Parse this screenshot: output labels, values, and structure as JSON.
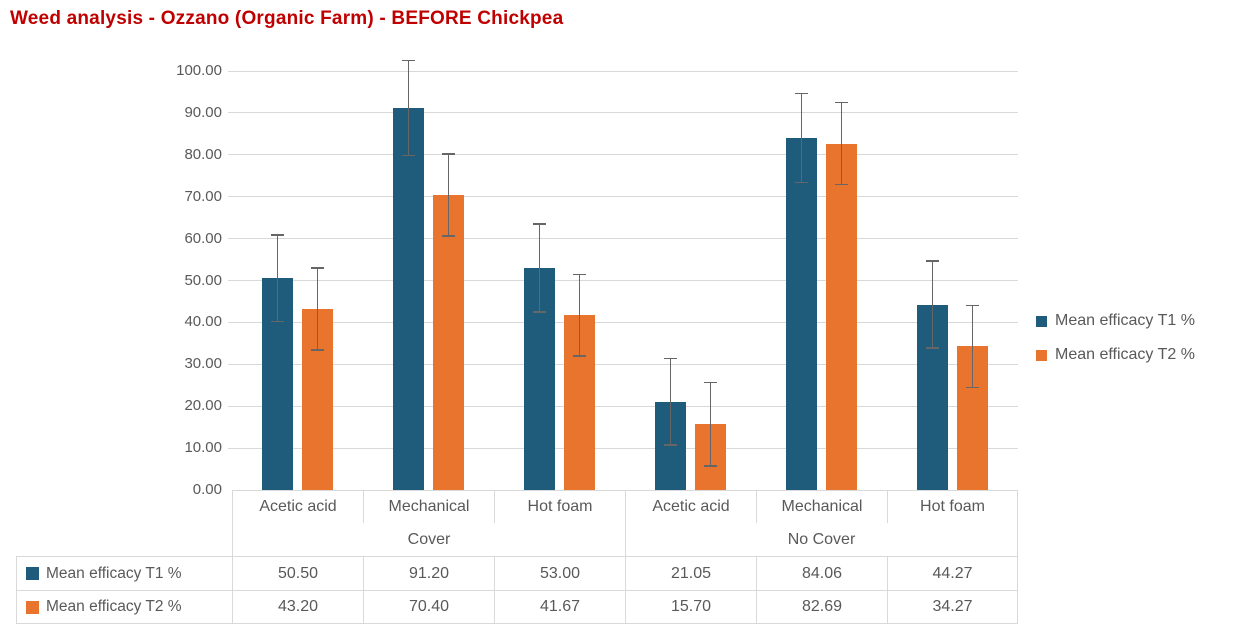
{
  "title": {
    "text": "Weed analysis - Ozzano (Organic Farm) - BEFORE Chickpea"
  },
  "colors": {
    "title": "#C00000",
    "series1": "#1F5C7C",
    "series2": "#E8742E",
    "text": "#595959",
    "grid": "#D9D9D9",
    "error_bar": "#666666",
    "table_border": "#D9D9D9",
    "background": "#FFFFFF"
  },
  "chart_data": {
    "type": "bar",
    "title": "Weed analysis - Ozzano (Organic Farm) - BEFORE Chickpea",
    "categories": [
      "Acetic acid",
      "Mechanical",
      "Hot foam",
      "Acetic acid",
      "Mechanical",
      "Hot foam"
    ],
    "category_groups": [
      {
        "label": "Cover",
        "span": 3
      },
      {
        "label": "No Cover",
        "span": 3
      }
    ],
    "series": [
      {
        "name": "Mean efficacy T1 %",
        "color": "#1F5C7C",
        "values": [
          50.5,
          91.2,
          53.0,
          21.05,
          84.06,
          44.27
        ],
        "errors": [
          10.5,
          11.5,
          10.7,
          10.5,
          10.8,
          10.6
        ]
      },
      {
        "name": "Mean efficacy T2 %",
        "color": "#E8742E",
        "values": [
          43.2,
          70.4,
          41.67,
          15.7,
          82.69,
          34.27
        ],
        "errors": [
          10.0,
          10.0,
          9.9,
          10.1,
          10.0,
          10.0
        ]
      }
    ],
    "ylim": [
      0,
      100
    ],
    "ytick_step": 10,
    "ytick_labels": [
      "0.00",
      "10.00",
      "20.00",
      "30.00",
      "40.00",
      "50.00",
      "60.00",
      "70.00",
      "80.00",
      "90.00",
      "100.00"
    ],
    "grid": true,
    "error_bars": true,
    "legend_position": "right",
    "data_table_shown": true
  },
  "legend": {
    "items": [
      "Mean efficacy T1 %",
      "Mean efficacy T2 %"
    ]
  },
  "table": {
    "rows": [
      {
        "header": "Mean efficacy T1 %",
        "values": [
          "50.50",
          "91.20",
          "53.00",
          "21.05",
          "84.06",
          "44.27"
        ]
      },
      {
        "header": "Mean efficacy T2 %",
        "values": [
          "43.20",
          "70.40",
          "41.67",
          "15.70",
          "82.69",
          "34.27"
        ]
      }
    ]
  }
}
